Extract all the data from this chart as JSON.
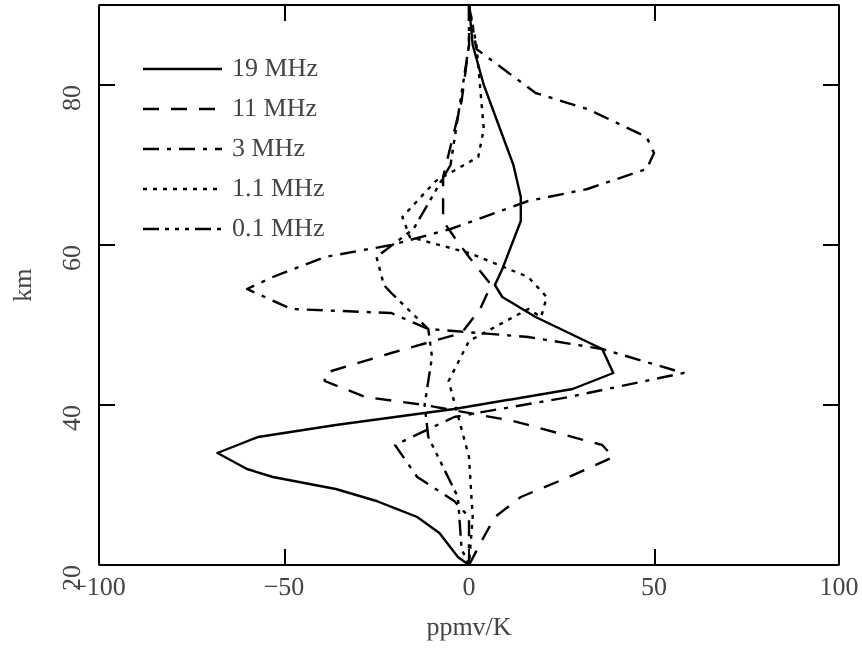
{
  "chart_data": {
    "type": "line",
    "xlabel": "ppmv/K",
    "ylabel": "km",
    "xlim": [
      -100,
      100
    ],
    "ylim": [
      20,
      90
    ],
    "xticks": [
      -100,
      -50,
      0,
      50,
      100
    ],
    "yticks": [
      20,
      40,
      60,
      80
    ],
    "grid": false,
    "legend": "top left",
    "series": [
      {
        "name": "19 MHz",
        "color": "#000000",
        "line_style": "solid",
        "x": [
          0,
          1,
          4,
          8,
          12,
          14,
          14,
          9,
          7,
          9,
          18,
          36,
          39,
          28,
          -4,
          -12,
          -36,
          -57,
          -68,
          -60,
          -53,
          -36,
          -25,
          -14,
          -8,
          -3,
          0
        ],
        "values": [
          90,
          85,
          80,
          75,
          70,
          66,
          63,
          57,
          55,
          53.5,
          51,
          47,
          44,
          42,
          39.5,
          39,
          37.5,
          36,
          34,
          32,
          31,
          29.5,
          28,
          26,
          24,
          21,
          20
        ]
      },
      {
        "name": "11 MHz",
        "color": "#000000",
        "line_style": "dashed",
        "x": [
          0,
          0,
          -2,
          -7,
          -7,
          -4,
          0,
          6,
          3,
          -2,
          -21,
          -39,
          -39,
          -28,
          -12,
          12,
          36,
          39,
          27,
          14,
          7,
          4,
          0
        ],
        "values": [
          90,
          85,
          78,
          68.5,
          63,
          61,
          58.5,
          55,
          52,
          49,
          46.5,
          44,
          43,
          41,
          40,
          38,
          35,
          33.5,
          31,
          28.5,
          26,
          23.5,
          20
        ]
      },
      {
        "name": "3 MHz",
        "color": "#000000",
        "line_style": "dashdot",
        "x": [
          0,
          2,
          18,
          32,
          48,
          50,
          48,
          32,
          16,
          -5,
          -21,
          -39,
          -53,
          -60,
          -48,
          -21,
          -11,
          16,
          36,
          58,
          27,
          -4,
          -20,
          -14,
          -4,
          0,
          0
        ],
        "values": [
          90,
          84.5,
          79,
          77,
          73.5,
          71.5,
          69.5,
          67,
          65.5,
          62,
          60,
          58.5,
          56,
          54.5,
          52,
          51.5,
          49.5,
          48.5,
          47,
          44,
          41,
          38.5,
          35,
          31,
          28,
          26,
          20
        ]
      },
      {
        "name": "1.1 MHz",
        "color": "#000000",
        "line_style": "dotted",
        "x": [
          0,
          2,
          4,
          2.5,
          -9,
          -18,
          -16,
          0,
          16,
          21,
          19.5,
          16,
          0,
          -5.5,
          0,
          1,
          0
        ],
        "values": [
          90,
          85,
          74.5,
          71,
          68,
          63.5,
          61,
          59,
          56,
          53.5,
          51,
          52,
          48,
          43,
          33.5,
          26,
          20
        ]
      },
      {
        "name": "0.1 MHz",
        "color": "#000000",
        "line_style": "dashdotdot",
        "x": [
          0,
          0,
          -5,
          -15,
          -25,
          -23,
          -21,
          -11,
          -10,
          -12,
          -11,
          -3,
          -2,
          0
        ],
        "values": [
          90,
          85,
          70,
          62,
          58.5,
          55,
          54,
          49.5,
          46,
          40,
          36,
          28.5,
          22,
          20
        ]
      }
    ]
  }
}
